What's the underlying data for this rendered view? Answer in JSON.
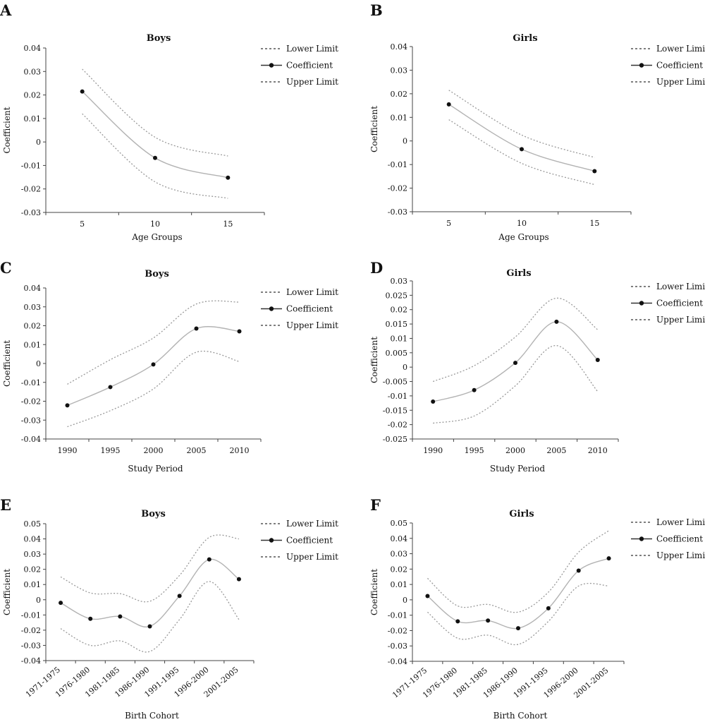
{
  "legend": {
    "lower_label": "Lower Limit",
    "coef_label": "Coefficient",
    "upper_label": "Upper Limit"
  },
  "chart_data": [
    {
      "panel": "A",
      "type": "line",
      "title": "Boys",
      "xlabel": "Age Groups",
      "ylabel": "Coefficient",
      "categories": [
        "5",
        "10",
        "15"
      ],
      "yticks": [
        "0.04",
        "0.03",
        "0.02",
        "0.01",
        "0",
        "-0.01",
        "-0.02",
        "-0.03"
      ],
      "ylim": [
        -0.03,
        0.04
      ],
      "legend_position": "right",
      "series": [
        {
          "name": "Lower Limit",
          "values": [
            0.012,
            -0.017,
            -0.024
          ]
        },
        {
          "name": "Coefficient",
          "values": [
            0.0215,
            -0.0068,
            -0.0152
          ]
        },
        {
          "name": "Upper Limit",
          "values": [
            0.031,
            0.002,
            -0.006
          ]
        }
      ]
    },
    {
      "panel": "B",
      "type": "line",
      "title": "Girls",
      "xlabel": "Age Groups",
      "ylabel": "Coefficient",
      "categories": [
        "5",
        "10",
        "15"
      ],
      "yticks": [
        "0.04",
        "0.03",
        "0.02",
        "0.01",
        "0",
        "-0.01",
        "-0.02",
        "-0.03"
      ],
      "ylim": [
        -0.03,
        0.04
      ],
      "legend_position": "right",
      "series": [
        {
          "name": "Lower Limit",
          "values": [
            0.009,
            -0.0095,
            -0.0185
          ]
        },
        {
          "name": "Coefficient",
          "values": [
            0.0155,
            -0.0035,
            -0.0128
          ]
        },
        {
          "name": "Upper Limit",
          "values": [
            0.0215,
            0.0025,
            -0.007
          ]
        }
      ]
    },
    {
      "panel": "C",
      "type": "line",
      "title": "Boys",
      "xlabel": "Study Period",
      "ylabel": "Coefficient",
      "categories": [
        "1990",
        "1995",
        "2000",
        "2005",
        "2010"
      ],
      "yticks": [
        "0.04",
        "0.03",
        "0.02",
        "0.01",
        "0",
        "-0.01",
        "-0.02",
        "-0.03",
        "-0.04"
      ],
      "ylim": [
        -0.04,
        0.04
      ],
      "legend_position": "right",
      "series": [
        {
          "name": "Lower Limit",
          "values": [
            -0.0335,
            -0.025,
            -0.0135,
            0.006,
            0.001
          ]
        },
        {
          "name": "Coefficient",
          "values": [
            -0.0222,
            -0.0125,
            -0.0005,
            0.0185,
            0.017
          ]
        },
        {
          "name": "Upper Limit",
          "values": [
            -0.011,
            0.002,
            0.0135,
            0.0315,
            0.0325
          ]
        }
      ]
    },
    {
      "panel": "D",
      "type": "line",
      "title": "Girls",
      "xlabel": "Study Period",
      "ylabel": "Coefficient",
      "categories": [
        "1990",
        "1995",
        "2000",
        "2005",
        "2010"
      ],
      "yticks": [
        "0.03",
        "0.025",
        "0.02",
        "0.015",
        "0.01",
        "0.005",
        "0",
        "-0.005",
        "-0.01",
        "-0.015",
        "-0.02",
        "-0.025"
      ],
      "ylim": [
        -0.025,
        0.03
      ],
      "legend_position": "right",
      "series": [
        {
          "name": "Lower Limit",
          "values": [
            -0.0195,
            -0.017,
            -0.0065,
            0.0075,
            -0.0085
          ]
        },
        {
          "name": "Coefficient",
          "values": [
            -0.012,
            -0.008,
            0.0015,
            0.0158,
            0.0025
          ]
        },
        {
          "name": "Upper Limit",
          "values": [
            -0.005,
            0.0005,
            0.0105,
            0.024,
            0.013
          ]
        }
      ]
    },
    {
      "panel": "E",
      "type": "line",
      "title": "Boys",
      "xlabel": "Birth Cohort",
      "ylabel": "Coefficient",
      "categories": [
        "1971-1975",
        "1976-1980",
        "1981-1985",
        "1986-1990",
        "1991-1995",
        "1996-2000",
        "2001-2005"
      ],
      "yticks": [
        "0.05",
        "0.04",
        "0.03",
        "0.02",
        "0.01",
        "0",
        "-0.01",
        "-0.02",
        "-0.03",
        "-0.04"
      ],
      "ylim": [
        -0.04,
        0.05
      ],
      "legend_position": "right",
      "series": [
        {
          "name": "Lower Limit",
          "values": [
            -0.019,
            -0.03,
            -0.027,
            -0.034,
            -0.013,
            0.012,
            -0.013
          ]
        },
        {
          "name": "Coefficient",
          "values": [
            -0.002,
            -0.0125,
            -0.011,
            -0.0175,
            0.0025,
            0.0265,
            0.0135
          ]
        },
        {
          "name": "Upper Limit",
          "values": [
            0.015,
            0.0045,
            0.004,
            -0.001,
            0.016,
            0.041,
            0.04
          ]
        }
      ]
    },
    {
      "panel": "F",
      "type": "line",
      "title": "Girls",
      "xlabel": "Birth Cohort",
      "ylabel": "Coefficient",
      "categories": [
        "1971-1975",
        "1976-1980",
        "1981-1985",
        "1986-1990",
        "1991-1995",
        "1996-2000",
        "2001-2005"
      ],
      "yticks": [
        "0.05",
        "0.04",
        "0.03",
        "0.02",
        "0.01",
        "0",
        "-0.01",
        "-0.02",
        "-0.03",
        "-0.04"
      ],
      "ylim": [
        -0.04,
        0.05
      ],
      "legend_position": "right",
      "series": [
        {
          "name": "Lower Limit",
          "values": [
            -0.008,
            -0.025,
            -0.023,
            -0.029,
            -0.014,
            0.009,
            0.009
          ]
        },
        {
          "name": "Coefficient",
          "values": [
            0.0025,
            -0.014,
            -0.0135,
            -0.0185,
            -0.0055,
            0.019,
            0.027
          ]
        },
        {
          "name": "Upper Limit",
          "values": [
            0.014,
            -0.004,
            -0.003,
            -0.008,
            0.005,
            0.031,
            0.045
          ]
        }
      ]
    }
  ]
}
